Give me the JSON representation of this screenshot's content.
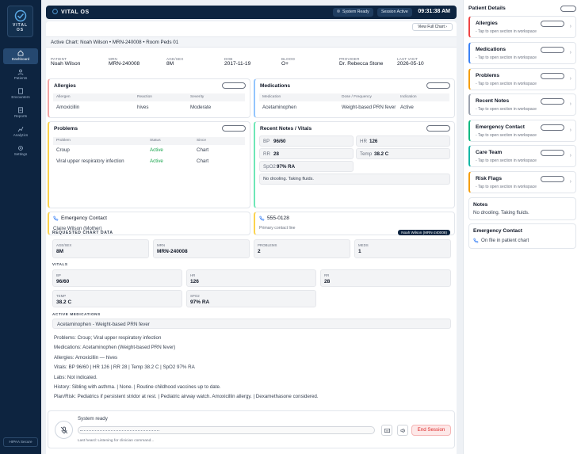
{
  "nav": {
    "brand": "VITAL OS",
    "items": [
      {
        "label": "Dashboard"
      },
      {
        "label": "Patients"
      },
      {
        "label": "Encounters"
      },
      {
        "label": "Reports"
      },
      {
        "label": "Analytics"
      },
      {
        "label": "Settings"
      }
    ],
    "hipaa": "HIPAA Secure"
  },
  "topbar": {
    "title": "VITAL OS",
    "system_status": "System Ready",
    "session_status": "Session Active",
    "time": "09:31:38 AM"
  },
  "chart": {
    "active": "Active Chart: Noah Wilson • MRN-240008 • Room Peds 01",
    "view_full": "View Full Chart"
  },
  "demographics": {
    "patient_label": "PATIENT",
    "patient": "Noah Wilson",
    "mrn_label": "MRN",
    "mrn": "MRN-240008",
    "age_label": "AGE/SEX",
    "age": "8M",
    "dob_label": "DOB",
    "dob": "2017-11-19",
    "blood_label": "BLOOD",
    "blood": "O+",
    "provider_label": "PROVIDER",
    "provider": "Dr. Rebecca Stone",
    "visit_label": "LAST VISIT",
    "visit": "2026-05-10"
  },
  "allergies": {
    "title": "Allergies",
    "headers": [
      "Allergen",
      "Reaction",
      "Severity"
    ],
    "row": [
      "Amoxicillin",
      "hives",
      "Moderate"
    ]
  },
  "medications": {
    "title": "Medications",
    "headers": [
      "Medication",
      "Dose / Frequency",
      "Indication"
    ],
    "row": [
      "Acetaminophen",
      "Weight-based PRN fever",
      "Active"
    ]
  },
  "problems": {
    "title": "Problems",
    "headers": [
      "Problem",
      "Status",
      "Since"
    ],
    "rows": [
      [
        "Croup",
        "Active",
        "Chart"
      ],
      [
        "Viral upper respiratory infection",
        "Active",
        "Chart"
      ]
    ]
  },
  "notes": {
    "title": "Recent Notes / Vitals",
    "bp_l": "BP",
    "bp": "96/60",
    "hr_l": "HR",
    "hr": "126",
    "rr_l": "RR",
    "rr": "28",
    "temp_l": "Temp",
    "temp": "38.2 C",
    "spo2_l": "SpO2",
    "spo2": "97% RA",
    "note": "No drooling. Taking fluids."
  },
  "emergency": {
    "title": "Emergency Contact",
    "name": "Claire Wilson (Mother)",
    "phone": "555-0128",
    "phone_note": "Primary contact line"
  },
  "requested": {
    "title": "REQUESTED CHART DATA",
    "badge": "Noah Wilson (MRN-240008)",
    "age_l": "AGE/SEX",
    "age": "8M",
    "mrn_l": "MRN",
    "mrn": "MRN-240008",
    "problems_l": "PROBLEMS",
    "problems": "2",
    "meds_l": "MEDS",
    "meds": "1",
    "vitals_title": "VITALS",
    "bp_l": "BP",
    "bp": "96/60",
    "hr_l": "HR",
    "hr": "126",
    "rr_l": "RR",
    "rr": "28",
    "temp_l": "TEMP",
    "temp": "38.2 C",
    "spo2_l": "SPO2",
    "spo2": "97% RA",
    "active_meds_title": "ACTIVE MEDICATIONS",
    "active_med": "Acetaminophen - Weight-based PRN fever",
    "lines": [
      "Problems: Croup; Viral upper respiratory infection",
      "Medications: Acetaminophen (Weight-based PRN fever)",
      "Allergies: Amoxicillin — hives",
      "Vitals: BP 96/60 | HR 126 | RR 28 | Temp 38.2 C | SpO2 97% RA",
      "Labs: Not indicated.",
      "History: Sibling with asthma. | None. | Routine childhood vaccines up to date.",
      "Plan/Risk: Pediatrics if persistent stridor at rest. | Pediatric airway watch. Amoxicillin allergy. | Dexamethasone considered."
    ]
  },
  "voice": {
    "status": "System ready",
    "last_heard": "Last heard: Listening for clinician command...",
    "end_label": "End Session"
  },
  "sidebar": {
    "title": "Patient Details",
    "hint": "- Tap to open section in workspace",
    "cards": [
      {
        "name": "Allergies",
        "color": "#ef4444"
      },
      {
        "name": "Medications",
        "color": "#3b82f6"
      },
      {
        "name": "Problems",
        "color": "#f59e0b"
      },
      {
        "name": "Recent Notes",
        "color": "#9ca3af"
      },
      {
        "name": "Emergency Contact",
        "color": "#10b981"
      },
      {
        "name": "Care Team",
        "color": "#14b8a6"
      },
      {
        "name": "Risk Flags",
        "color": "#f59e0b"
      }
    ],
    "notes_title": "Notes",
    "notes_text": "No drooling. Taking fluids.",
    "ec_title": "Emergency Contact",
    "ec_text": "On file in patient chart"
  }
}
